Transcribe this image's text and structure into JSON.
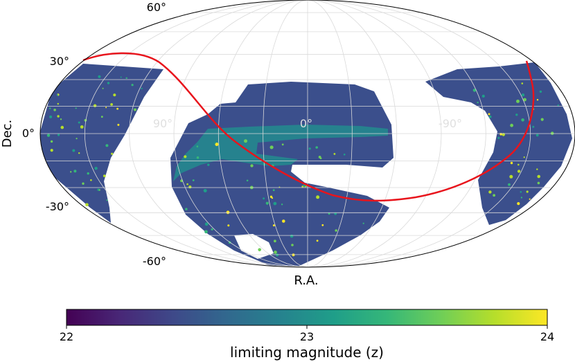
{
  "chart_data": {
    "type": "heatmap",
    "projection": "mollweide",
    "title": "",
    "xlabel": "R.A.",
    "ylabel": "Dec.",
    "ra_tick_labels": [
      "90°",
      "0°",
      "-90°"
    ],
    "dec_tick_labels": [
      "60°",
      "30°",
      "0°",
      "-30°",
      "-60°"
    ],
    "ra_ticks_deg": [
      90,
      0,
      -90
    ],
    "dec_ticks_deg": [
      60,
      30,
      0,
      -30,
      -60
    ],
    "grid": true,
    "colorbar": {
      "label": "limiting magnitude (z)",
      "min": 22,
      "max": 24,
      "tick_values": [
        22,
        23,
        24
      ],
      "tick_labels": [
        "22",
        "23",
        "24"
      ],
      "colormap": [
        "#440154",
        "#482777",
        "#3e4989",
        "#31688e",
        "#26828e",
        "#1f9e89",
        "#35b779",
        "#6ece58",
        "#b5de2b",
        "#fde725"
      ]
    },
    "galactic_plane_color": "#e8141c",
    "survey_fill_color": "#3b4f8c"
  }
}
